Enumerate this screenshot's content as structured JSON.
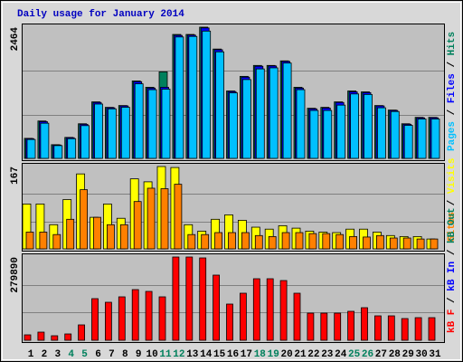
{
  "chart_data": [
    {
      "type": "bar",
      "title": "Daily usage for January 2014",
      "ylim": [
        0,
        2464
      ],
      "yticks": [
        2464
      ],
      "legend_separator": " / ",
      "series": [
        {
          "name": "Pages",
          "color": "#00C0FF",
          "values": [
            355,
            660,
            240,
            370,
            615,
            1020,
            930,
            960,
            1400,
            1290,
            1300,
            2280,
            2290,
            2390,
            2000,
            1230,
            1480,
            1680,
            1700,
            1790,
            1290,
            900,
            900,
            1000,
            1210,
            1200,
            950,
            880,
            620,
            740,
            740
          ]
        },
        {
          "name": "Files",
          "color": "#0000FF",
          "values": [
            370,
            690,
            252,
            388,
            640,
            1050,
            950,
            985,
            1440,
            1320,
            1335,
            2310,
            2315,
            2450,
            2040,
            1255,
            1525,
            1730,
            1735,
            1820,
            1320,
            930,
            945,
            1050,
            1250,
            1235,
            985,
            900,
            640,
            760,
            762
          ]
        },
        {
          "name": "Hits",
          "color": "#00805C",
          "values": [
            376,
            702,
            257,
            394,
            650,
            1061,
            958,
            992,
            1454,
            1335,
            1625,
            2327,
            2327,
            2464,
            2053,
            1266,
            1540,
            1745,
            1745,
            1831,
            1335,
            941,
            958,
            1061,
            1266,
            1249,
            992,
            907,
            650,
            770,
            770
          ]
        }
      ]
    },
    {
      "type": "bar",
      "ylim": [
        0,
        167
      ],
      "yticks": [
        167
      ],
      "legend_separator": " / ",
      "series": [
        {
          "name": "Sites",
          "color": "#FF8000",
          "values": [
            34,
            34,
            29,
            60,
            120,
            64,
            49,
            49,
            96,
            123,
            122,
            131,
            29,
            29,
            33,
            33,
            33,
            27,
            25,
            33,
            33,
            31,
            31,
            29,
            25,
            24,
            27,
            22,
            22,
            20,
            20
          ]
        },
        {
          "name": "Visits",
          "color": "#FFFF00",
          "values": [
            91,
            91,
            49,
            100,
            152,
            64,
            91,
            62,
            142,
            136,
            167,
            165,
            49,
            36,
            60,
            69,
            58,
            44,
            40,
            47,
            42,
            36,
            34,
            33,
            40,
            40,
            34,
            27,
            25,
            25,
            20
          ]
        }
      ]
    },
    {
      "type": "bar",
      "ylim": [
        0,
        279890
      ],
      "yticks": [
        279890
      ],
      "legend_separator": " / ",
      "categories": [
        "1",
        "2",
        "3",
        "4",
        "5",
        "6",
        "7",
        "8",
        "9",
        "10",
        "11",
        "12",
        "13",
        "14",
        "15",
        "16",
        "17",
        "18",
        "19",
        "20",
        "21",
        "22",
        "23",
        "24",
        "25",
        "26",
        "27",
        "28",
        "29",
        "30",
        "31"
      ],
      "category_colors": [
        "#000000",
        "#000000",
        "#000000",
        "#00805C",
        "#00805C",
        "#000000",
        "#000000",
        "#000000",
        "#000000",
        "#000000",
        "#00805C",
        "#00805C",
        "#000000",
        "#000000",
        "#000000",
        "#000000",
        "#000000",
        "#00805C",
        "#00805C",
        "#000000",
        "#000000",
        "#000000",
        "#000000",
        "#000000",
        "#00805C",
        "#00805C",
        "#000000",
        "#000000",
        "#000000",
        "#000000",
        "#000000"
      ],
      "series": [
        {
          "name": "kB F",
          "color": "#FF0000",
          "values": [
            18254,
            27381,
            15211,
            21296,
            51718,
            139945,
            127777,
            146029,
            170368,
            164283,
            146029,
            279890,
            279890,
            276848,
            219044,
            121692,
            158198,
            206875,
            206875,
            200790,
            158198,
            91268,
            91268,
            91268,
            97353,
            109522,
            82141,
            82141,
            73015,
            76058,
            76058
          ]
        }
      ],
      "extra_legend": [
        {
          "name": "kB In",
          "color": "#0000FF"
        },
        {
          "name": "kB Out",
          "color": "#00805C"
        }
      ]
    }
  ]
}
